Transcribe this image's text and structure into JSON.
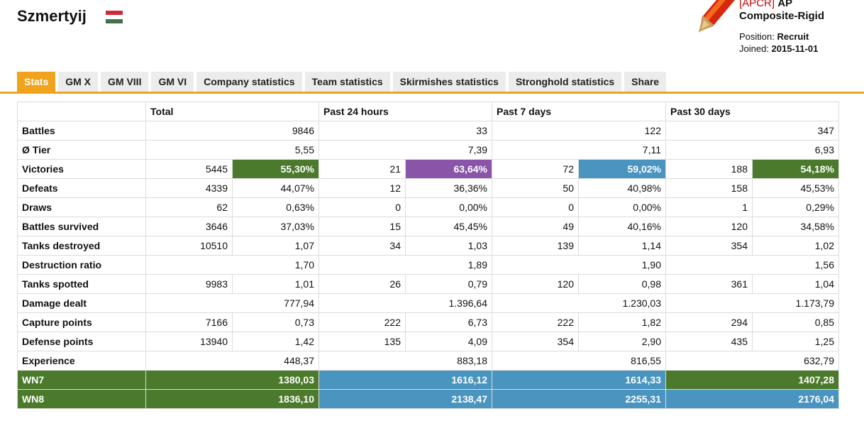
{
  "player": {
    "name": "Szmertyij",
    "flag_colors": [
      "#cd2a3e",
      "#ffffff",
      "#436f4d"
    ]
  },
  "clan": {
    "tag": "[APCR]",
    "name_line1": "AP",
    "name_line2": "Composite-Rigid",
    "position_label": "Position:",
    "position_value": "Recruit",
    "joined_label": "Joined:",
    "joined_value": "2015-11-01"
  },
  "tabs": [
    {
      "label": "Stats",
      "active": true
    },
    {
      "label": "GM X"
    },
    {
      "label": "GM VIII"
    },
    {
      "label": "GM VI"
    },
    {
      "label": "Company statistics"
    },
    {
      "label": "Team statistics"
    },
    {
      "label": "Skirmishes statistics"
    },
    {
      "label": "Stronghold statistics"
    },
    {
      "label": "Share"
    }
  ],
  "colors": {
    "accent": "#f0a31c",
    "green": "#4c7a2c",
    "blue": "#4a94c0",
    "purple": "#8a55a8"
  },
  "table": {
    "headers": [
      "",
      "Total",
      "Past 24 hours",
      "Past 7 days",
      "Past 30 days"
    ],
    "rows": [
      {
        "label": "Battles",
        "cells": [
          [
            "",
            "9846"
          ],
          [
            "",
            "33"
          ],
          [
            "",
            "122"
          ],
          [
            "",
            "347"
          ]
        ]
      },
      {
        "label": "Ø Tier",
        "cells": [
          [
            "",
            "5,55"
          ],
          [
            "",
            "7,39"
          ],
          [
            "",
            "7,11"
          ],
          [
            "",
            "6,93"
          ]
        ]
      },
      {
        "label": "Victories",
        "cells": [
          [
            "5445",
            "55,30%",
            "green"
          ],
          [
            "21",
            "63,64%",
            "purple"
          ],
          [
            "72",
            "59,02%",
            "blue"
          ],
          [
            "188",
            "54,18%",
            "green"
          ]
        ]
      },
      {
        "label": "Defeats",
        "cells": [
          [
            "4339",
            "44,07%"
          ],
          [
            "12",
            "36,36%"
          ],
          [
            "50",
            "40,98%"
          ],
          [
            "158",
            "45,53%"
          ]
        ]
      },
      {
        "label": "Draws",
        "cells": [
          [
            "62",
            "0,63%"
          ],
          [
            "0",
            "0,00%"
          ],
          [
            "0",
            "0,00%"
          ],
          [
            "1",
            "0,29%"
          ]
        ]
      },
      {
        "label": "Battles survived",
        "cells": [
          [
            "3646",
            "37,03%"
          ],
          [
            "15",
            "45,45%"
          ],
          [
            "49",
            "40,16%"
          ],
          [
            "120",
            "34,58%"
          ]
        ]
      },
      {
        "label": "Tanks destroyed",
        "cells": [
          [
            "10510",
            "1,07"
          ],
          [
            "34",
            "1,03"
          ],
          [
            "139",
            "1,14"
          ],
          [
            "354",
            "1,02"
          ]
        ]
      },
      {
        "label": "Destruction ratio",
        "cells": [
          [
            "",
            "1,70"
          ],
          [
            "",
            "1,89"
          ],
          [
            "",
            "1,90"
          ],
          [
            "",
            "1,56"
          ]
        ]
      },
      {
        "label": "Tanks spotted",
        "cells": [
          [
            "9983",
            "1,01"
          ],
          [
            "26",
            "0,79"
          ],
          [
            "120",
            "0,98"
          ],
          [
            "361",
            "1,04"
          ]
        ]
      },
      {
        "label": "Damage dealt",
        "cells": [
          [
            "",
            "777,94"
          ],
          [
            "",
            "1.396,64"
          ],
          [
            "",
            "1.230,03"
          ],
          [
            "",
            "1.173,79"
          ]
        ]
      },
      {
        "label": "Capture points",
        "cells": [
          [
            "7166",
            "0,73"
          ],
          [
            "222",
            "6,73"
          ],
          [
            "222",
            "1,82"
          ],
          [
            "294",
            "0,85"
          ]
        ]
      },
      {
        "label": "Defense points",
        "cells": [
          [
            "13940",
            "1,42"
          ],
          [
            "135",
            "4,09"
          ],
          [
            "354",
            "2,90"
          ],
          [
            "435",
            "1,25"
          ]
        ]
      },
      {
        "label": "Experience",
        "cells": [
          [
            "",
            "448,37"
          ],
          [
            "",
            "883,18"
          ],
          [
            "",
            "816,55"
          ],
          [
            "",
            "632,79"
          ]
        ]
      },
      {
        "label": "WN7",
        "rating": true,
        "cells": [
          [
            "",
            "1380,03",
            "green"
          ],
          [
            "",
            "1616,12",
            "blue"
          ],
          [
            "",
            "1614,33",
            "blue"
          ],
          [
            "",
            "1407,28",
            "green"
          ]
        ]
      },
      {
        "label": "WN8",
        "rating": true,
        "cells": [
          [
            "",
            "1836,10",
            "green"
          ],
          [
            "",
            "2138,47",
            "blue"
          ],
          [
            "",
            "2255,31",
            "blue"
          ],
          [
            "",
            "2176,04",
            "blue"
          ]
        ]
      }
    ]
  }
}
